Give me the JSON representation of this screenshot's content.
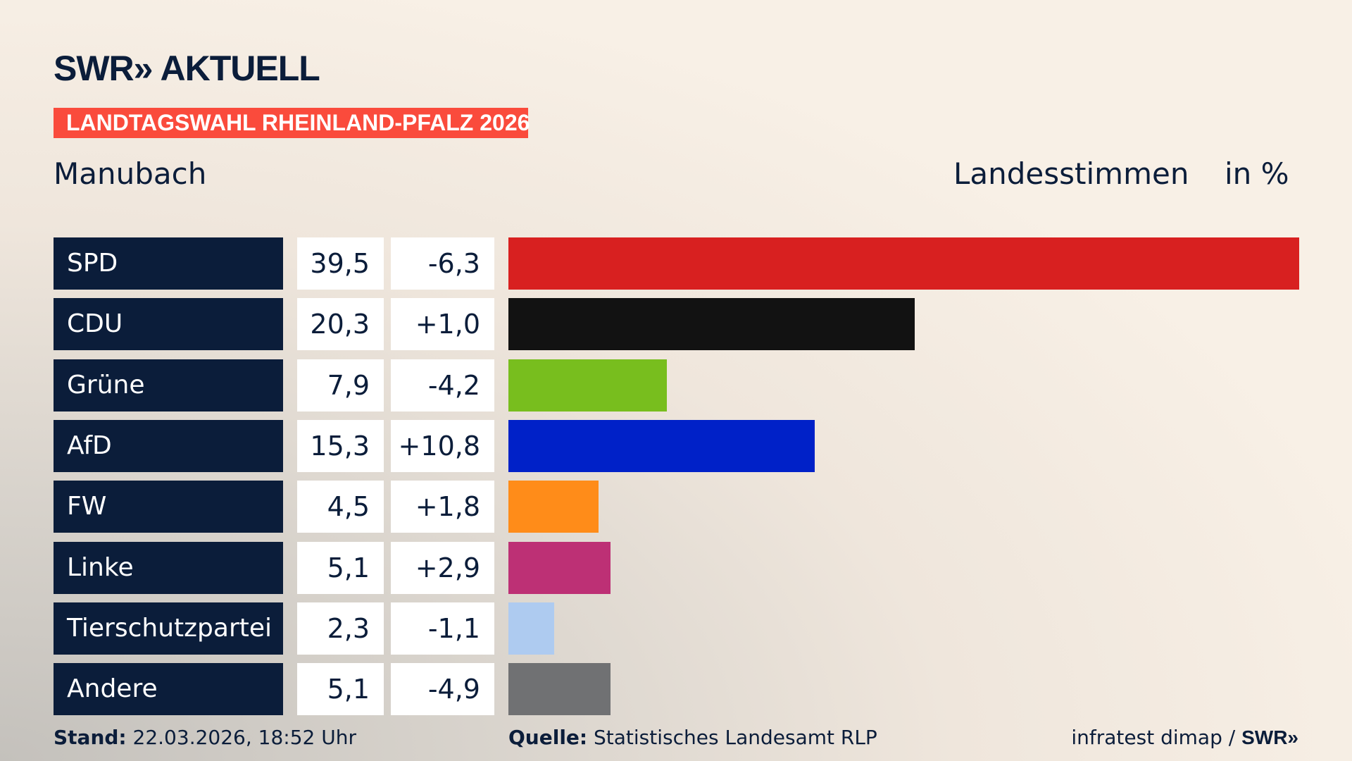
{
  "logo": "SWR» AKTUELL",
  "banner": "LANDTAGSWAHL RHEINLAND-PFALZ 2026",
  "location": "Manubach",
  "header": {
    "metric": "Landesstimmen",
    "unit": "in %"
  },
  "chart_data": {
    "type": "bar",
    "orientation": "horizontal",
    "categories": [
      "SPD",
      "CDU",
      "Grüne",
      "AfD",
      "FW",
      "Linke",
      "Tierschutzpartei",
      "Andere"
    ],
    "values": [
      39.5,
      20.3,
      7.9,
      15.3,
      4.5,
      5.1,
      2.3,
      5.1
    ],
    "value_labels": [
      "39,5",
      "20,3",
      "7,9",
      "15,3",
      "4,5",
      "5,1",
      "2,3",
      "5,1"
    ],
    "change_labels": [
      "-6,3",
      "+1,0",
      "-4,2",
      "+10,8",
      "+1,8",
      "+2,9",
      "-1,1",
      "-4,9"
    ],
    "colors": [
      "#d82020",
      "#121212",
      "#78be1e",
      "#0021c8",
      "#ff8c19",
      "#bd3075",
      "#aecbf0",
      "#707173"
    ]
  },
  "footer": {
    "stand_label": "Stand:",
    "stand_value": "22.03.2026, 18:52 Uhr",
    "source_label": "Quelle:",
    "source_value": "Statistisches Landesamt RLP",
    "credit": "infratest dimap / ",
    "credit_logo": "SWR»"
  }
}
